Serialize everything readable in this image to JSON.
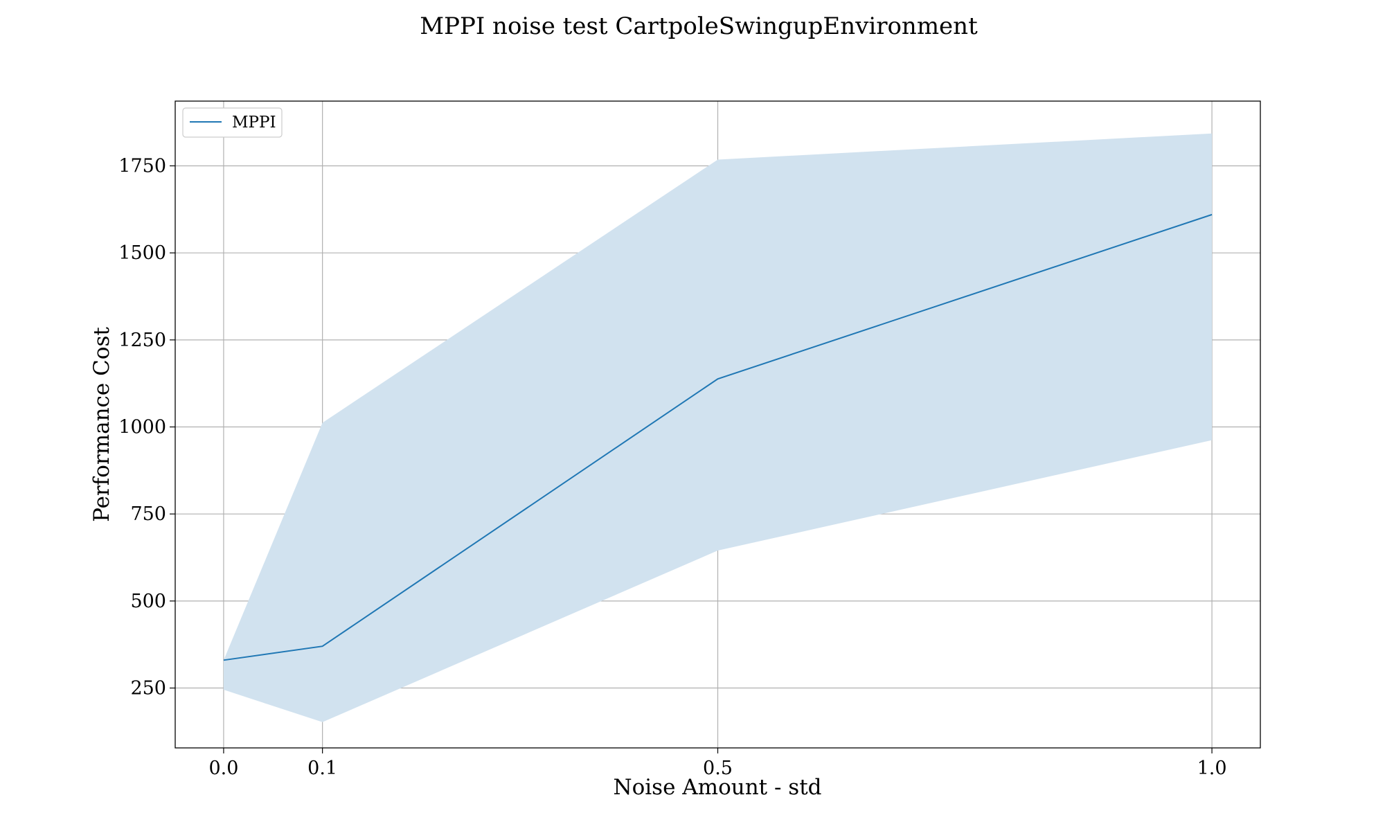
{
  "chart_data": {
    "type": "line",
    "title": "MPPI noise test CartpoleSwingupEnvironment",
    "xlabel": "Noise Amount - std",
    "ylabel": "Performance Cost",
    "x": [
      0.0,
      0.1,
      0.5,
      1.0
    ],
    "x_tick_labels": [
      "0.0",
      "0.1",
      "0.5",
      "1.0"
    ],
    "y_ticks": [
      250,
      500,
      750,
      1000,
      1250,
      1500,
      1750
    ],
    "y_tick_labels": [
      "250",
      "500",
      "750",
      "1000",
      "1250",
      "1500",
      "1750"
    ],
    "xlim": [
      -0.049,
      1.049
    ],
    "ylim": [
      78,
      1936
    ],
    "grid": true,
    "legend_position": "upper-left",
    "series": [
      {
        "name": "MPPI",
        "values": [
          330,
          370,
          1138,
          1610
        ],
        "band_lower": [
          245,
          152,
          645,
          962
        ],
        "band_upper": [
          330,
          1012,
          1768,
          1843
        ],
        "color": "#1f77b4",
        "band_color": "#d1e2ef"
      }
    ]
  }
}
